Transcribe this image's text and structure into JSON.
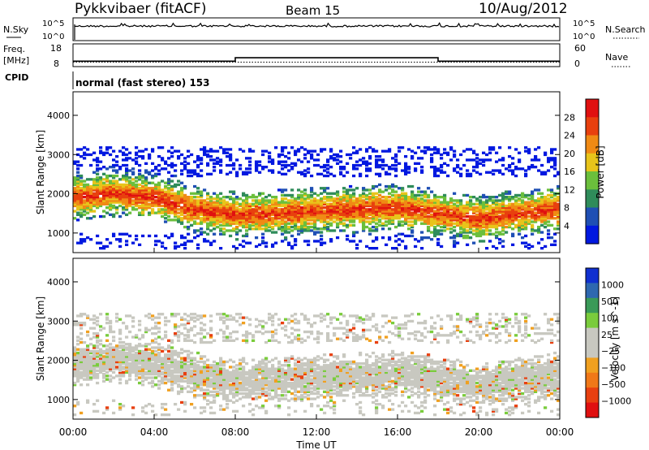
{
  "header": {
    "station": "Pykkvibaer (fitACF)",
    "beam": "Beam 15",
    "date": "10/Aug/2012"
  },
  "status_panels": {
    "nsky_label": "N.Sky",
    "nsky_ticks": [
      "10^5",
      "10^0"
    ],
    "nsearch_label": "N.Search",
    "nsearch_ticks": [
      "10^5",
      "10^0"
    ],
    "freq_label": "Freq.",
    "freq_unit": "[MHz]",
    "freq_ticks": [
      "18",
      "8"
    ],
    "nave_label": "Nave",
    "nave_ticks": [
      "60",
      "0"
    ],
    "cpid_label": "CPID",
    "cpid_value": "normal (fast stereo) 153",
    "freq_steps": [
      {
        "t": 0,
        "v": 10.2
      },
      {
        "t": 8,
        "v": 10.2
      },
      {
        "t": 8,
        "v": 11.8
      },
      {
        "t": 18,
        "v": 11.8
      },
      {
        "t": 18,
        "v": 10.2
      },
      {
        "t": 24,
        "v": 10.2
      }
    ],
    "nave_level": 10.5
  },
  "chart_data": [
    {
      "type": "heatmap",
      "title": "",
      "xlabel": "Time UT",
      "ylabel": "Slant Range [km]",
      "xlim": [
        0,
        24
      ],
      "ylim": [
        500,
        4600
      ],
      "x_tick_labels": [
        "00:00",
        "04:00",
        "08:00",
        "12:00",
        "16:00",
        "20:00",
        "00:00"
      ],
      "x_ticks": [
        0,
        4,
        8,
        12,
        16,
        20,
        24
      ],
      "y_ticks": [
        1000,
        2000,
        3000,
        4000
      ],
      "y_tick_labels": [
        "1000",
        "2000",
        "3000",
        "4000"
      ],
      "colorbar_label": "Power [dB]",
      "colorbar_ticks": [
        "4",
        "8",
        "12",
        "16",
        "20",
        "24",
        "28"
      ],
      "colors": [
        "#0018e0",
        "#1f4fb4",
        "#2f8c5a",
        "#6bbf3c",
        "#e8c41a",
        "#f08a14",
        "#e8400e",
        "#e01010"
      ],
      "echo_band": {
        "hours": [
          0,
          2,
          4,
          6,
          8,
          10,
          12,
          14,
          16,
          18,
          20,
          22,
          24
        ],
        "center_km": [
          1900,
          2000,
          1900,
          1600,
          1450,
          1500,
          1550,
          1600,
          1650,
          1500,
          1350,
          1500,
          1600
        ],
        "peak_db": [
          24,
          22,
          20,
          22,
          26,
          26,
          26,
          26,
          26,
          28,
          26,
          24,
          22
        ]
      }
    },
    {
      "type": "heatmap",
      "title": "",
      "xlabel": "Time UT",
      "ylabel": "Slant Range [km]",
      "xlim": [
        0,
        24
      ],
      "ylim": [
        500,
        4600
      ],
      "x_tick_labels": [
        "00:00",
        "04:00",
        "08:00",
        "12:00",
        "16:00",
        "20:00",
        "00:00"
      ],
      "x_ticks": [
        0,
        4,
        8,
        12,
        16,
        20,
        24
      ],
      "y_ticks": [
        1000,
        2000,
        3000,
        4000
      ],
      "y_tick_labels": [
        "1000",
        "2000",
        "3000",
        "4000"
      ],
      "colorbar_label": "Velocity [m s^-1]",
      "colorbar_ticks": [
        "1000",
        "500",
        "100",
        "25",
        "−25",
        "−100",
        "−500",
        "−1000"
      ],
      "colors": [
        "#1030d0",
        "#2e68b0",
        "#3a9a58",
        "#7acc3c",
        "#c8c8c0",
        "#c8c8c0",
        "#f0a020",
        "#f07818",
        "#e84010",
        "#e01010"
      ],
      "echo_band": {
        "hours": [
          0,
          2,
          4,
          6,
          8,
          10,
          12,
          14,
          16,
          18,
          20,
          22,
          24
        ],
        "center_km": [
          1900,
          2000,
          1900,
          1600,
          1450,
          1500,
          1550,
          1600,
          1650,
          1500,
          1350,
          1500,
          1600
        ],
        "dominant_velocity_ms": [
          0,
          0,
          0,
          0,
          0,
          0,
          0,
          0,
          0,
          0,
          0,
          0,
          0
        ]
      }
    }
  ]
}
